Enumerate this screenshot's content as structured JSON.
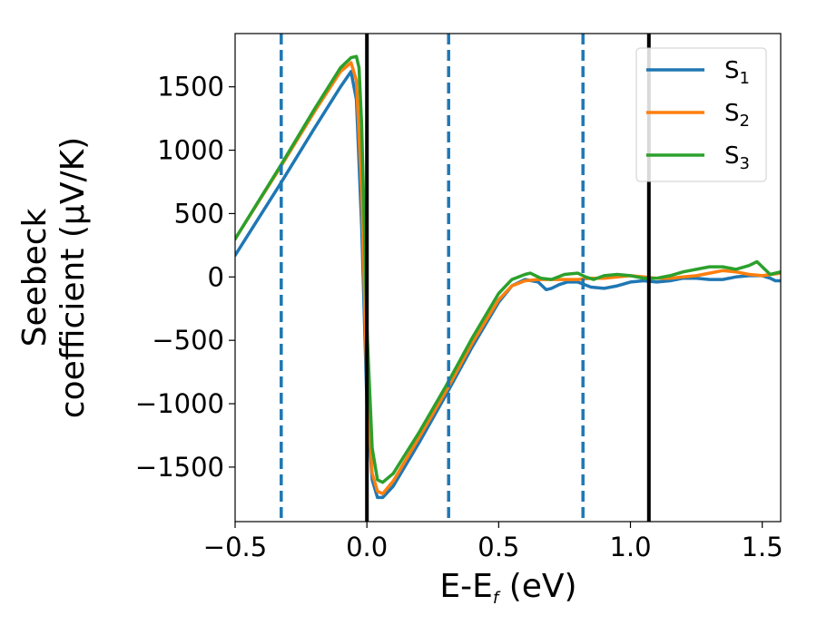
{
  "chart_data": {
    "type": "line",
    "xlabel": "E-E",
    "xlabel_sub": "f",
    "xlabel_unit": " (eV)",
    "ylabel_line1": "Seebeck",
    "ylabel_line2": "coefficient  (μV/K)",
    "xlim": [
      -0.5,
      1.57
    ],
    "ylim": [
      -1930,
      1920
    ],
    "xticks": [
      -0.5,
      0.0,
      0.5,
      1.0,
      1.5
    ],
    "xtick_labels": [
      "−0.5",
      "0.0",
      "0.5",
      "1.0",
      "1.5"
    ],
    "yticks": [
      -1500,
      -1000,
      -500,
      0,
      500,
      1000,
      1500
    ],
    "ytick_labels": [
      "−1500",
      "−1000",
      "−500",
      "0",
      "500",
      "1000",
      "1500"
    ],
    "grid": false,
    "legend_position": "top-right",
    "series": [
      {
        "name": "S",
        "sub": "1",
        "color": "#1f77b4",
        "x": [
          -0.5,
          -0.33,
          -0.2,
          -0.1,
          -0.06,
          -0.04,
          -0.02,
          0.0,
          0.02,
          0.04,
          0.06,
          0.1,
          0.2,
          0.3,
          0.4,
          0.5,
          0.55,
          0.6,
          0.65,
          0.68,
          0.7,
          0.73,
          0.76,
          0.8,
          0.85,
          0.9,
          0.95,
          1.0,
          1.05,
          1.1,
          1.15,
          1.2,
          1.25,
          1.3,
          1.35,
          1.4,
          1.45,
          1.5,
          1.53,
          1.55,
          1.57
        ],
        "y": [
          170,
          730,
          1170,
          1500,
          1620,
          1400,
          400,
          -1000,
          -1600,
          -1740,
          -1740,
          -1650,
          -1300,
          -930,
          -550,
          -200,
          -70,
          -20,
          -40,
          -100,
          -90,
          -60,
          -40,
          -40,
          -80,
          -90,
          -70,
          -40,
          -30,
          -40,
          -30,
          -10,
          -10,
          -20,
          -20,
          0,
          10,
          10,
          -10,
          -30,
          -30
        ]
      },
      {
        "name": "S",
        "sub": "2",
        "color": "#ff7f0e",
        "x": [
          -0.5,
          -0.33,
          -0.2,
          -0.1,
          -0.06,
          -0.04,
          -0.02,
          0.0,
          0.02,
          0.04,
          0.06,
          0.1,
          0.2,
          0.3,
          0.4,
          0.5,
          0.55,
          0.6,
          0.65,
          0.7,
          0.75,
          0.8,
          0.85,
          0.9,
          0.95,
          1.0,
          1.05,
          1.1,
          1.15,
          1.2,
          1.25,
          1.3,
          1.35,
          1.4,
          1.45,
          1.5,
          1.57
        ],
        "y": [
          300,
          860,
          1300,
          1620,
          1690,
          1550,
          700,
          -850,
          -1550,
          -1690,
          -1710,
          -1610,
          -1260,
          -900,
          -520,
          -180,
          -70,
          -30,
          -20,
          -20,
          -20,
          -20,
          -10,
          -10,
          0,
          10,
          0,
          -10,
          -10,
          0,
          10,
          30,
          50,
          40,
          20,
          10,
          30
        ]
      },
      {
        "name": "S",
        "sub": "3",
        "color": "#2ca02c",
        "x": [
          -0.5,
          -0.33,
          -0.2,
          -0.1,
          -0.06,
          -0.04,
          -0.03,
          -0.02,
          0.0,
          0.02,
          0.04,
          0.06,
          0.1,
          0.2,
          0.3,
          0.4,
          0.5,
          0.55,
          0.6,
          0.62,
          0.64,
          0.66,
          0.7,
          0.75,
          0.8,
          0.83,
          0.86,
          0.9,
          0.95,
          1.0,
          1.05,
          1.1,
          1.15,
          1.2,
          1.25,
          1.3,
          1.35,
          1.4,
          1.45,
          1.48,
          1.5,
          1.53,
          1.57
        ],
        "y": [
          300,
          870,
          1320,
          1650,
          1730,
          1740,
          1650,
          1200,
          -400,
          -1350,
          -1600,
          -1620,
          -1550,
          -1220,
          -860,
          -480,
          -130,
          -20,
          20,
          30,
          10,
          -10,
          -20,
          20,
          30,
          0,
          -20,
          10,
          20,
          10,
          -10,
          -10,
          10,
          40,
          60,
          80,
          80,
          60,
          90,
          120,
          80,
          20,
          40
        ]
      }
    ],
    "reference_lines": [
      {
        "x": -0.325,
        "style": "dashed",
        "color": "#1f77b4"
      },
      {
        "x": 0.0,
        "style": "solid",
        "color": "#000000"
      },
      {
        "x": 0.31,
        "style": "dashed",
        "color": "#1f77b4"
      },
      {
        "x": 0.82,
        "style": "dashed",
        "color": "#1f77b4"
      },
      {
        "x": 1.07,
        "style": "solid",
        "color": "#000000"
      }
    ]
  }
}
